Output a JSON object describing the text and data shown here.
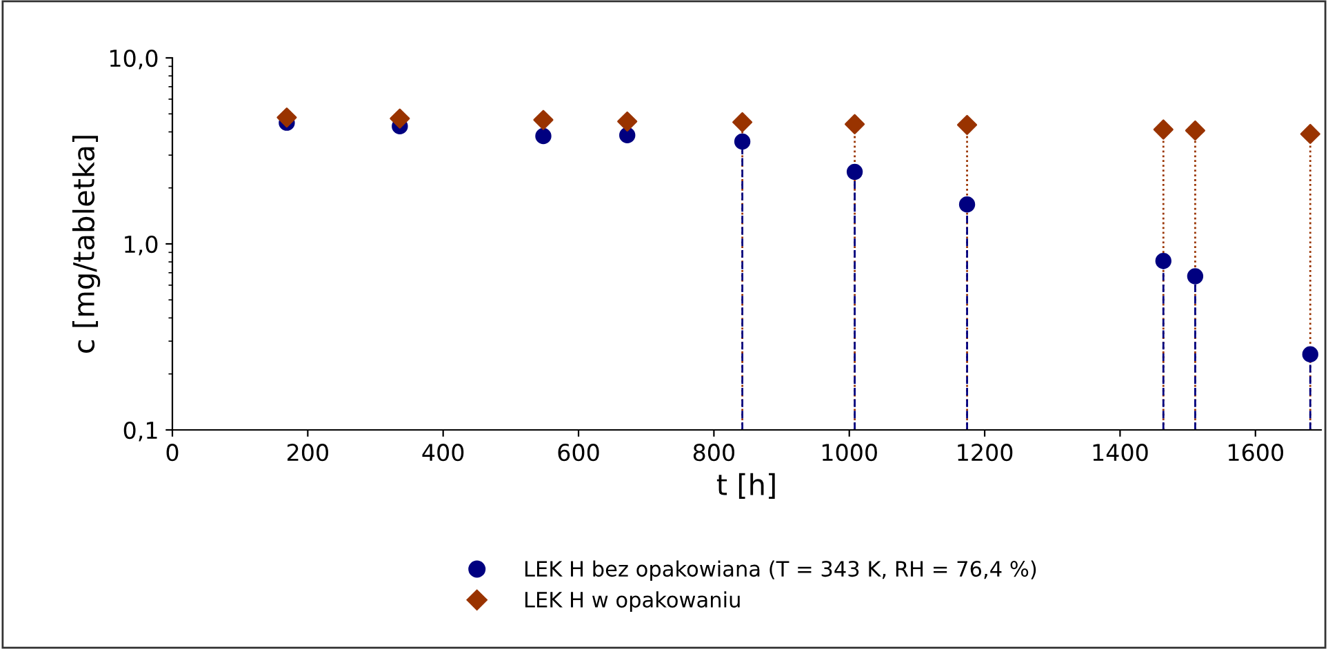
{
  "chart_data": {
    "type": "scatter",
    "xlabel": "t [h]",
    "ylabel": "c [mg/tabletka]",
    "log": "y",
    "xlim": [
      0,
      1697
    ],
    "xticks": [
      0,
      200,
      400,
      600,
      800,
      1000,
      1200,
      1400,
      1600
    ],
    "ylim": [
      0.1,
      10
    ],
    "yticks": [
      {
        "value": 0.1,
        "label": "0,1"
      },
      {
        "value": 1,
        "label": "1,0"
      },
      {
        "value": 10,
        "label": "10,0"
      }
    ],
    "grid": false,
    "legend": "bottom",
    "x": [
      169,
      336,
      548,
      672,
      842,
      1008,
      1174,
      1464,
      1511,
      1681
    ],
    "series": [
      {
        "name": "LEK H bez opakowiana (T = 343 K, RH = 76,4 %)",
        "color": "#000080",
        "marker": "circle",
        "values": [
          4.48,
          4.29,
          3.8,
          3.84,
          3.55,
          2.44,
          1.63,
          0.81,
          0.67,
          0.255
        ]
      },
      {
        "name": "LEK H w opakowaniu",
        "color": "#993300",
        "marker": "diamond",
        "values": [
          4.78,
          4.72,
          4.64,
          4.55,
          4.51,
          4.4,
          4.36,
          4.12,
          4.07,
          3.9
        ]
      }
    ],
    "ref_lines": [
      {
        "axis": "x",
        "value": 842,
        "color": "#993300",
        "line_style": "dotted"
      },
      {
        "axis": "x",
        "value": 842,
        "color": "#000080",
        "line_style": "dashed"
      },
      {
        "axis": "x",
        "value": 1008,
        "color": "#993300",
        "line_style": "dotted"
      },
      {
        "axis": "x",
        "value": 1008,
        "color": "#000080",
        "line_style": "dashed"
      },
      {
        "axis": "x",
        "value": 1174,
        "color": "#993300",
        "line_style": "dotted"
      },
      {
        "axis": "x",
        "value": 1174,
        "color": "#000080",
        "line_style": "dashed"
      },
      {
        "axis": "x",
        "value": 1464,
        "color": "#993300",
        "line_style": "dotted"
      },
      {
        "axis": "x",
        "value": 1464,
        "color": "#000080",
        "line_style": "dashed"
      },
      {
        "axis": "x",
        "value": 1511,
        "color": "#993300",
        "line_style": "dotted"
      },
      {
        "axis": "x",
        "value": 1511,
        "color": "#000080",
        "line_style": "dashed"
      },
      {
        "axis": "x",
        "value": 1681,
        "color": "#993300",
        "line_style": "dotted"
      },
      {
        "axis": "x",
        "value": 1681,
        "color": "#000080",
        "line_style": "dashed"
      }
    ]
  }
}
